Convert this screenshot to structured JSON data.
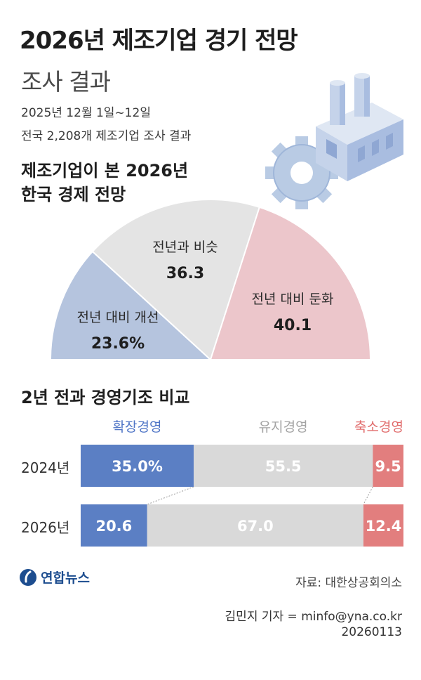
{
  "header": {
    "title": "2026년 제조기업 경기 전망",
    "subtitle": "조사 결과",
    "survey_period": "2025년 12월 1일~12일",
    "survey_scope": "전국 2,208개 제조기업 조사 결과"
  },
  "section1": {
    "title_line1": "제조기업이 본 2026년",
    "title_line2": "한국 경제 전망"
  },
  "section2": {
    "title": "2년 전과 경영기조 비교"
  },
  "footer": {
    "logo_text": "연합뉴스",
    "source": "자료: 대한상공회의소",
    "credit": "김민지 기자 = minfo@yna.co.kr",
    "date_code": "20260113"
  },
  "chart_data": [
    {
      "type": "pie",
      "shape": "half-donut",
      "title": "제조기업이 본 2026년 한국 경제 전망",
      "slices": [
        {
          "label": "전년 대비 개선",
          "value": 23.6,
          "display": "23.6%",
          "color": "#b5c4de"
        },
        {
          "label": "전년과 비슷",
          "value": 36.3,
          "display": "36.3",
          "color": "#e4e4e4"
        },
        {
          "label": "전년 대비 둔화",
          "value": 40.1,
          "display": "40.1",
          "color": "#ecc6cb"
        }
      ]
    },
    {
      "type": "bar",
      "orientation": "horizontal",
      "stacked": true,
      "title": "2년 전과 경영기조 비교",
      "categories": [
        "2024년",
        "2026년"
      ],
      "series": [
        {
          "name": "확장경영",
          "values": [
            35.0,
            20.6
          ],
          "labels": [
            "35.0%",
            "20.6"
          ],
          "color": "#5b7fc4",
          "legend_color": "#4e74c6"
        },
        {
          "name": "유지경영",
          "values": [
            55.5,
            67.0
          ],
          "labels": [
            "55.5",
            "67.0"
          ],
          "color": "#d9d9d9",
          "legend_color": "#a3a3a3"
        },
        {
          "name": "축소경영",
          "values": [
            9.5,
            12.4
          ],
          "labels": [
            "9.5",
            "12.4"
          ],
          "color": "#e27e7e",
          "legend_color": "#e06a6a"
        }
      ]
    }
  ]
}
